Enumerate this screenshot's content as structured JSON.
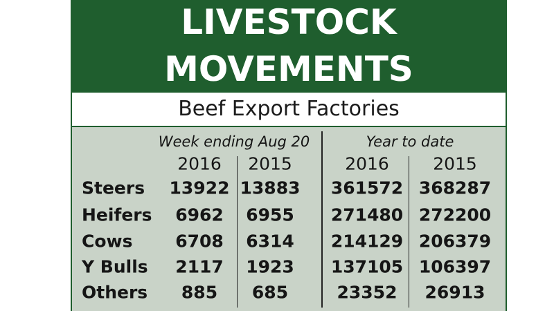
{
  "title_line1": "LIVESTOCK",
  "title_line2": "MOVEMENTS",
  "subtitle": "Beef Export Factories",
  "colors": {
    "header_green": "#1f5e2e",
    "table_bg": "#c9d3c8"
  },
  "chart_data": {
    "type": "table",
    "column_groups": [
      "Week ending Aug 20",
      "Year to date"
    ],
    "columns": [
      "2016",
      "2015",
      "2016",
      "2015"
    ],
    "rows": [
      {
        "label": "Steers",
        "values": [
          "13922",
          "13883",
          "361572",
          "368287"
        ]
      },
      {
        "label": "Heifers",
        "values": [
          "6962",
          "6955",
          "271480",
          "272200"
        ]
      },
      {
        "label": "Cows",
        "values": [
          "6708",
          "6314",
          "214129",
          "206379"
        ]
      },
      {
        "label": "Y Bulls",
        "values": [
          "2117",
          "1923",
          "137105",
          "106397"
        ]
      },
      {
        "label": "Others",
        "values": [
          "885",
          "685",
          "23352",
          "26913"
        ]
      }
    ]
  }
}
